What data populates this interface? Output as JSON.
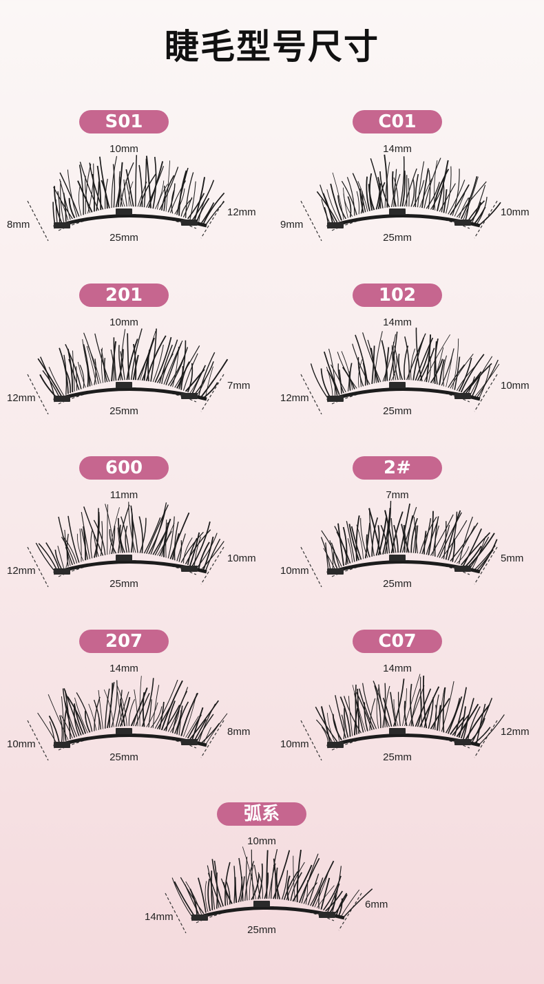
{
  "page": {
    "title": "睫毛型号尺寸"
  },
  "lashes": [
    {
      "model": "S01",
      "top": "10mm",
      "left": "8mm",
      "right": "12mm",
      "bottom": "25mm"
    },
    {
      "model": "C01",
      "top": "14mm",
      "left": "9mm",
      "right": "10mm",
      "bottom": "25mm"
    },
    {
      "model": "201",
      "top": "10mm",
      "left": "12mm",
      "right": "7mm",
      "bottom": "25mm"
    },
    {
      "model": "102",
      "top": "14mm",
      "left": "12mm",
      "right": "10mm",
      "bottom": "25mm"
    },
    {
      "model": "600",
      "top": "11mm",
      "left": "12mm",
      "right": "10mm",
      "bottom": "25mm"
    },
    {
      "model": "2#",
      "top": "7mm",
      "left": "10mm",
      "right": "5mm",
      "bottom": "25mm"
    },
    {
      "model": "207",
      "top": "14mm",
      "left": "10mm",
      "right": "8mm",
      "bottom": "25mm"
    },
    {
      "model": "C07",
      "top": "14mm",
      "left": "10mm",
      "right": "12mm",
      "bottom": "25mm"
    },
    {
      "model": "弧系",
      "top": "10mm",
      "left": "14mm",
      "right": "6mm",
      "bottom": "25mm"
    }
  ],
  "colors": {
    "badge": "#c6668f",
    "lash": "#1c1c1c",
    "background": "#f8e9ea"
  }
}
